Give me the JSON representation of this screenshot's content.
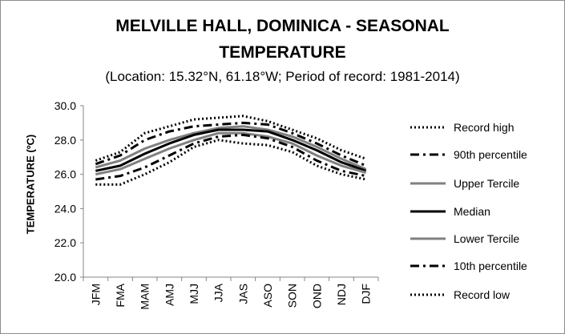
{
  "title_line1": "MELVILLE HALL, DOMINICA - SEASONAL",
  "title_line2": "TEMPERATURE",
  "subtitle": "(Location: 15.32°N, 61.18°W; Period of record: 1981-2014)",
  "chart_data": {
    "type": "line",
    "title": "MELVILLE HALL, DOMINICA - SEASONAL TEMPERATURE",
    "subtitle": "(Location: 15.32°N, 61.18°W; Period of record: 1981-2014)",
    "ylabel": "TEMPERATURE (ºC)",
    "xlabel": "",
    "ylim": [
      20.0,
      30.0
    ],
    "yticks": [
      "20.0",
      "22.0",
      "24.0",
      "26.0",
      "28.0",
      "30.0"
    ],
    "grid": false,
    "legend_position": "right",
    "categories": [
      "JFM",
      "FMA",
      "MAM",
      "AMJ",
      "MJJ",
      "JJA",
      "JAS",
      "ASO",
      "SON",
      "OND",
      "NDJ",
      "DJF"
    ],
    "series": [
      {
        "name": "Record high",
        "color": "#000000",
        "style": "dotted",
        "values": [
          26.8,
          27.3,
          28.4,
          28.8,
          29.2,
          29.3,
          29.4,
          29.1,
          28.6,
          28.1,
          27.4,
          26.9
        ]
      },
      {
        "name": "90th percentile",
        "color": "#000000",
        "style": "dashdot",
        "values": [
          26.6,
          27.1,
          28.0,
          28.5,
          28.8,
          28.9,
          29.0,
          28.9,
          28.4,
          27.8,
          27.1,
          26.5
        ]
      },
      {
        "name": "Upper Tercile",
        "color": "#808080",
        "style": "solid",
        "values": [
          26.4,
          26.8,
          27.5,
          28.0,
          28.4,
          28.7,
          28.8,
          28.6,
          28.2,
          27.6,
          26.9,
          26.3
        ]
      },
      {
        "name": "Median",
        "color": "#000000",
        "style": "solid",
        "values": [
          26.2,
          26.5,
          27.2,
          27.8,
          28.3,
          28.6,
          28.6,
          28.5,
          28.0,
          27.4,
          26.7,
          26.2
        ]
      },
      {
        "name": "Lower Tercile",
        "color": "#808080",
        "style": "solid",
        "values": [
          26.0,
          26.3,
          26.9,
          27.5,
          28.0,
          28.4,
          28.4,
          28.2,
          27.8,
          27.1,
          26.5,
          26.1
        ]
      },
      {
        "name": "10th percentile",
        "color": "#000000",
        "style": "dashdot",
        "values": [
          25.7,
          25.9,
          26.4,
          27.1,
          27.8,
          28.2,
          28.3,
          28.1,
          27.6,
          26.8,
          26.2,
          25.9
        ]
      },
      {
        "name": "Record low",
        "color": "#000000",
        "style": "dotted",
        "values": [
          25.4,
          25.4,
          26.0,
          26.7,
          27.6,
          28.0,
          27.8,
          27.7,
          27.3,
          26.5,
          26.0,
          25.7
        ]
      }
    ]
  }
}
